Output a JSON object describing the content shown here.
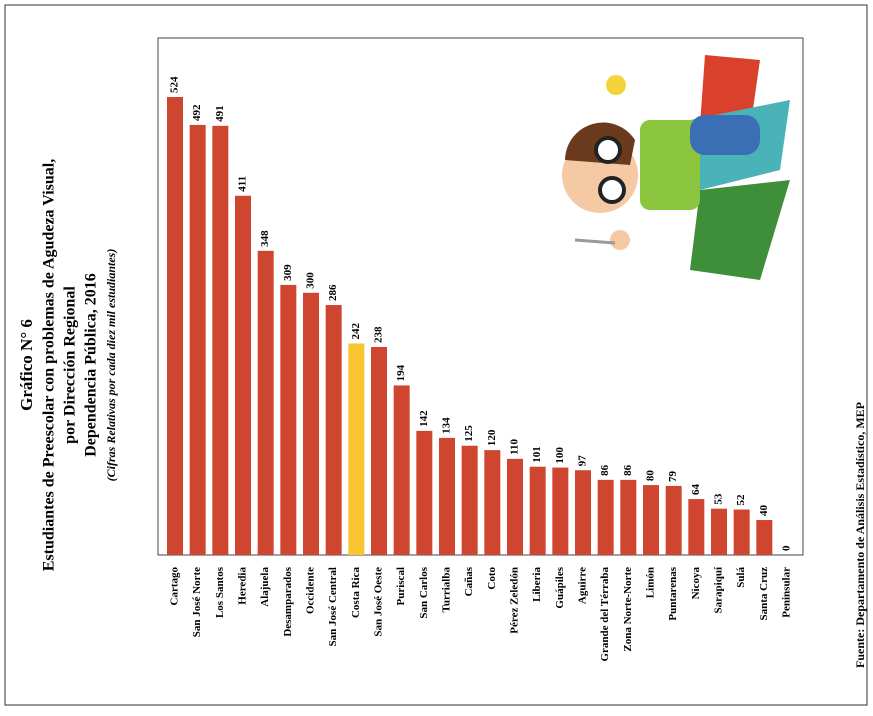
{
  "chart_data": {
    "type": "bar",
    "title_lines": [
      "Gráfico N° 6",
      "Estudiantes de Preescolar con problemas de Agudeza Visual,",
      "por Dirección Regional",
      "Dependencia Pública, 2016"
    ],
    "subtitle": "(Cifras Relativas por cada diez mil estudiantes)",
    "source": "Fuente: Departamento de Análisis Estadístico, MEP",
    "categories": [
      "Cartago",
      "San José Norte",
      "Los Santos",
      "Heredia",
      "Alajuela",
      "Desamparados",
      "Occidente",
      "San José Central",
      "Costa Rica",
      "San José Oeste",
      "Puriscal",
      "San Carlos",
      "Turrialba",
      "Cañas",
      "Coto",
      "Pérez Zeledón",
      "Liberia",
      "Guápiles",
      "Aguirre",
      "Grande del Térraba",
      "Zona Norte-Norte",
      "Limón",
      "Puntarenas",
      "Nicoya",
      "Sarapiquí",
      "Sulá",
      "Santa Cruz",
      "Peninsular"
    ],
    "values": [
      524,
      492,
      491,
      411,
      348,
      309,
      300,
      286,
      242,
      238,
      194,
      142,
      134,
      125,
      120,
      110,
      101,
      100,
      97,
      86,
      86,
      80,
      79,
      64,
      53,
      52,
      40,
      0
    ],
    "colors": [
      "#cf4630",
      "#cf4630",
      "#cf4630",
      "#cf4630",
      "#cf4630",
      "#cf4630",
      "#cf4630",
      "#cf4630",
      "#f9c531",
      "#cf4630",
      "#cf4630",
      "#cf4630",
      "#cf4630",
      "#cf4630",
      "#cf4630",
      "#cf4630",
      "#cf4630",
      "#cf4630",
      "#cf4630",
      "#cf4630",
      "#cf4630",
      "#cf4630",
      "#cf4630",
      "#cf4630",
      "#cf4630",
      "#cf4630",
      "#cf4630",
      "#cf4630"
    ]
  }
}
